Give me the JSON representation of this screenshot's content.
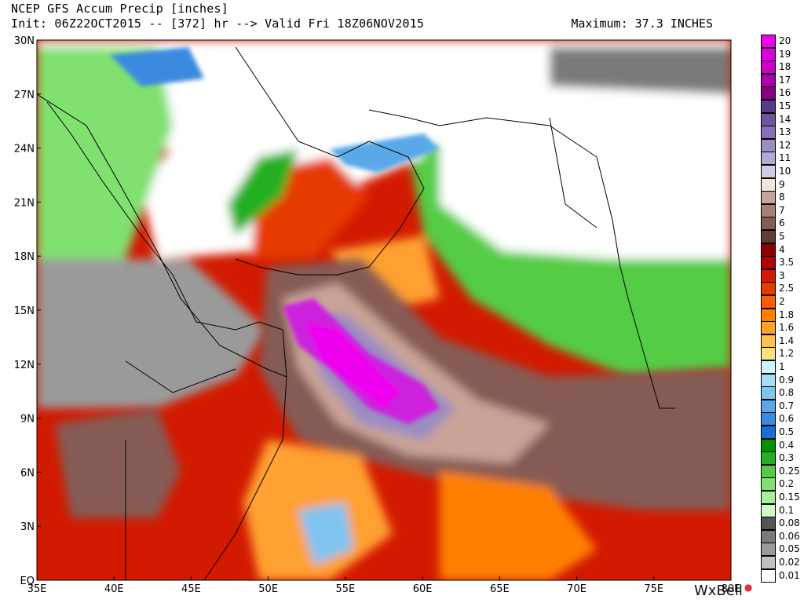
{
  "header": {
    "title": "NCEP GFS Accum Precip [inches]",
    "subtitle": "Init: 06Z22OCT2015 -- [372] hr --> Valid Fri 18Z06NOV2015",
    "maximum": "Maximum: 37.3 INCHES"
  },
  "axes": {
    "lon_labels": [
      "35E",
      "40E",
      "45E",
      "50E",
      "55E",
      "60E",
      "65E",
      "70E",
      "75E",
      "80E"
    ],
    "lat_labels": [
      "30N",
      "27N",
      "24N",
      "21N",
      "18N",
      "15N",
      "12N",
      "9N",
      "6N",
      "3N",
      "EQ"
    ],
    "lon_range": [
      35,
      80
    ],
    "lat_range": [
      0,
      30
    ]
  },
  "legend": {
    "items": [
      {
        "label": "20",
        "color": "#ee00ee"
      },
      {
        "label": "19",
        "color": "#dd00dd"
      },
      {
        "label": "18",
        "color": "#cc00cc"
      },
      {
        "label": "17",
        "color": "#aa00aa"
      },
      {
        "label": "16",
        "color": "#880088"
      },
      {
        "label": "15",
        "color": "#5b3a8c"
      },
      {
        "label": "14",
        "color": "#6e55a0"
      },
      {
        "label": "13",
        "color": "#8470b4"
      },
      {
        "label": "12",
        "color": "#9a8cc4"
      },
      {
        "label": "11",
        "color": "#b3a9d6"
      },
      {
        "label": "10",
        "color": "#d2cbe6"
      },
      {
        "label": "9",
        "color": "#f2e3dc"
      },
      {
        "label": "8",
        "color": "#c9a397"
      },
      {
        "label": "7",
        "color": "#a6807a"
      },
      {
        "label": "6",
        "color": "#855b55"
      },
      {
        "label": "5",
        "color": "#633a35"
      },
      {
        "label": "4",
        "color": "#8c0000"
      },
      {
        "label": "3.5",
        "color": "#b30000"
      },
      {
        "label": "3",
        "color": "#d21a00"
      },
      {
        "label": "2.5",
        "color": "#e63a00"
      },
      {
        "label": "2",
        "color": "#ff5e00"
      },
      {
        "label": "1.8",
        "color": "#ff8000"
      },
      {
        "label": "1.6",
        "color": "#ffa030"
      },
      {
        "label": "1.4",
        "color": "#ffc050"
      },
      {
        "label": "1.2",
        "color": "#ffe080"
      },
      {
        "label": "1",
        "color": "#ccf5ff"
      },
      {
        "label": "0.9",
        "color": "#a8dcf5"
      },
      {
        "label": "0.8",
        "color": "#80c4f0"
      },
      {
        "label": "0.7",
        "color": "#5aa8e8"
      },
      {
        "label": "0.6",
        "color": "#3a8ae0"
      },
      {
        "label": "0.5",
        "color": "#1a6cd8"
      },
      {
        "label": "0.4",
        "color": "#009000"
      },
      {
        "label": "0.3",
        "color": "#22b022"
      },
      {
        "label": "0.25",
        "color": "#55cc44"
      },
      {
        "label": "0.2",
        "color": "#80e070"
      },
      {
        "label": "0.15",
        "color": "#a8f098"
      },
      {
        "label": "0.1",
        "color": "#ccfcc0"
      },
      {
        "label": "0.08",
        "color": "#555555"
      },
      {
        "label": "0.06",
        "color": "#7a7a7a"
      },
      {
        "label": "0.05",
        "color": "#9a9a9a"
      },
      {
        "label": "0.02",
        "color": "#c0c0c0"
      },
      {
        "label": "0.01",
        "color": "#ffffff"
      }
    ]
  },
  "branding": {
    "text": "WxBell"
  },
  "colors": {
    "land_dry": "#ffffff",
    "heavy_rain_core": "#cc22dd",
    "ocean_rain": "#d21a00",
    "light_rain": "#55cc44",
    "trace": "#9a9a9a",
    "coastline": "#000000"
  }
}
